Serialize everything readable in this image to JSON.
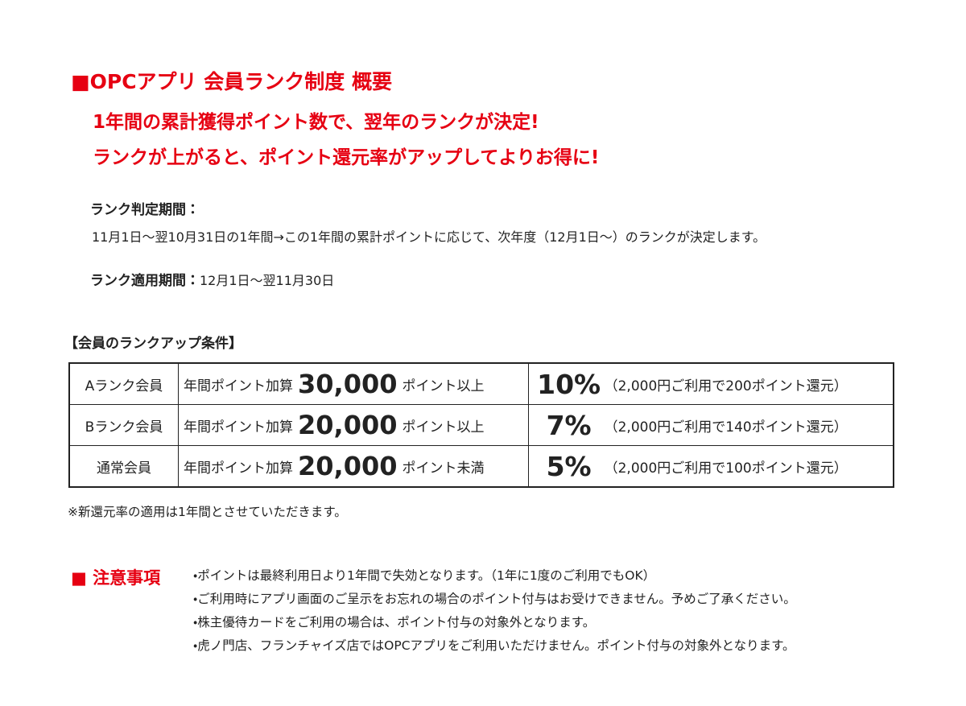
{
  "header": {
    "title": "■OPCアプリ 会員ランク制度 概要",
    "lines": [
      "1年間の累計獲得ポイント数で、翌年のランクが決定!",
      "ランクが上がると、ポイント還元率がアップしてよりお得に!"
    ]
  },
  "periods": [
    {
      "label": "ランク判定期間：",
      "text": "11月1日〜翌10月31日の1年間→この1年間の累計ポイントに応じて、次年度（12月1日〜）のランクが決定します。"
    },
    {
      "label": "ランク適用期間：",
      "text": "12月1日〜翌11月30日"
    }
  ],
  "table": {
    "title": "【会員のランクアップ条件】",
    "rows": [
      [
        "Aランク会員",
        "年間ポイント加算",
        "30,000",
        "ポイント以上",
        "10%",
        "（2,000円ご利用で200ポイント還元）"
      ],
      [
        "Bランク会員",
        "年間ポイント加算",
        "20,000",
        "ポイント以上",
        "7%",
        "（2,000円ご利用で140ポイント還元）"
      ],
      [
        "通常会員",
        "年間ポイント加算",
        "20,000",
        "ポイント未満",
        "5%",
        "（2,000円ご利用で100ポイント還元）"
      ]
    ],
    "footnote": "※新還元率の適用は1年間とさせていただきます。"
  },
  "notes": {
    "title": "■ 注意事項",
    "items": [
      "・ポイントは最終利用日より1年間で失効となります。（1年に1度のご利用でもOK）",
      "・ご利用時にアプリ画面のご呈示をお忘れの場合のポイント付与はお受けできません。予めご了承ください。",
      "・株主優待カードをご利用の場合は、ポイント付与の対象外となります。",
      "・虎ノ門店、フランチャイズ店ではOPCアプリをご利用いただけません。ポイント付与の対象外となります。"
    ]
  }
}
